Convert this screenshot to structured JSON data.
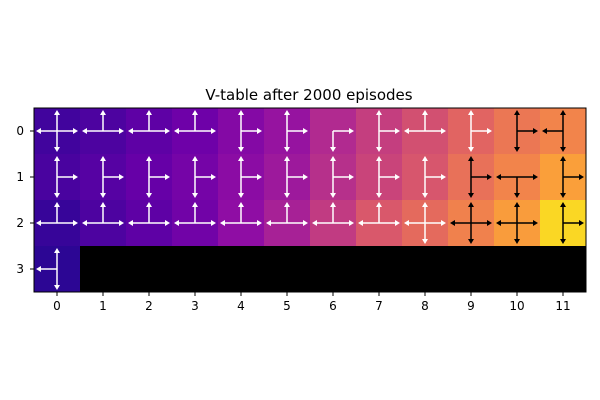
{
  "chart_data": {
    "type": "heatmap",
    "title": "V-table after 2000 episodes",
    "xlabel": "",
    "ylabel": "",
    "x_ticks": [
      "0",
      "1",
      "2",
      "3",
      "4",
      "5",
      "6",
      "7",
      "8",
      "9",
      "10",
      "11"
    ],
    "y_ticks": [
      "0",
      "1",
      "2",
      "3"
    ],
    "colormap": "plasma",
    "value_range": [
      0,
      1
    ],
    "grid": false,
    "legend": "none",
    "values": [
      [
        0.1,
        0.13,
        0.17,
        0.21,
        0.27,
        0.32,
        0.4,
        0.47,
        0.53,
        0.6,
        0.66,
        0.7
      ],
      [
        0.12,
        0.15,
        0.19,
        0.23,
        0.29,
        0.34,
        0.42,
        0.49,
        0.55,
        0.64,
        0.7,
        0.78
      ],
      [
        0.08,
        0.13,
        0.17,
        0.22,
        0.3,
        0.37,
        0.46,
        0.56,
        0.62,
        0.69,
        0.77,
        0.92
      ],
      [
        0.06,
        null,
        null,
        null,
        null,
        null,
        null,
        null,
        null,
        null,
        null,
        null
      ]
    ],
    "masked_color": "#000000",
    "policy_arrows": [
      [
        [
          "left",
          "right",
          "up",
          "down"
        ],
        [
          "left",
          "right",
          "up"
        ],
        [
          "left",
          "right",
          "up"
        ],
        [
          "left",
          "right",
          "up"
        ],
        [
          "right",
          "up",
          "down"
        ],
        [
          "right",
          "up",
          "down"
        ],
        [
          "right",
          "down"
        ],
        [
          "right",
          "up",
          "down"
        ],
        [
          "left",
          "right",
          "up"
        ],
        [
          "right",
          "up",
          "down"
        ],
        [
          "right",
          "up",
          "down"
        ],
        [
          "left",
          "up",
          "down"
        ]
      ],
      [
        [
          "right",
          "up",
          "down"
        ],
        [
          "right",
          "up",
          "down"
        ],
        [
          "right",
          "up",
          "down"
        ],
        [
          "right",
          "up",
          "down"
        ],
        [
          "right",
          "up",
          "down"
        ],
        [
          "right",
          "up",
          "down"
        ],
        [
          "right",
          "up",
          "down"
        ],
        [
          "right",
          "up",
          "down"
        ],
        [
          "right",
          "up",
          "down"
        ],
        [
          "right",
          "up",
          "down"
        ],
        [
          "left",
          "right",
          "down"
        ],
        [
          "right",
          "up",
          "down"
        ]
      ],
      [
        [
          "left",
          "right",
          "up"
        ],
        [
          "left",
          "right",
          "up"
        ],
        [
          "left",
          "right",
          "up"
        ],
        [
          "left",
          "right",
          "up"
        ],
        [
          "left",
          "right",
          "up"
        ],
        [
          "left",
          "right",
          "up"
        ],
        [
          "left",
          "right",
          "up"
        ],
        [
          "left",
          "right",
          "up"
        ],
        [
          "left",
          "right",
          "up",
          "down"
        ],
        [
          "left",
          "right",
          "up",
          "down"
        ],
        [
          "left",
          "right",
          "up",
          "down"
        ],
        [
          "right",
          "up",
          "down"
        ]
      ],
      [
        [
          "left",
          "up",
          "down"
        ],
        [],
        [],
        [],
        [],
        [],
        [],
        [],
        [],
        [],
        [],
        []
      ]
    ],
    "arrow_colors": {
      "light_cells": "#ffffff",
      "dark_cells": "#000000"
    }
  }
}
